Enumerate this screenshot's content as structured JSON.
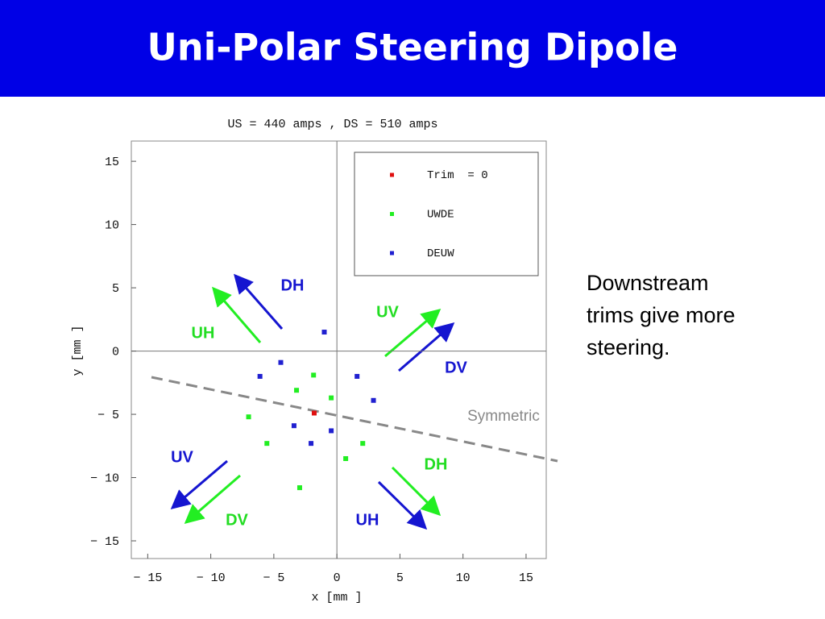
{
  "header": {
    "title": "Uni-Polar Steering Dipole"
  },
  "chart_data": {
    "type": "scatter",
    "title": "US  = 440  amps , DS  = 510  amps",
    "x_label": "x  [mm ]",
    "y_label": "y  [mm ]",
    "xlim": [
      -16.3,
      16.6
    ],
    "ylim": [
      -16.4,
      16.6
    ],
    "xticks": [
      {
        "value": -15,
        "label": "− 15"
      },
      {
        "value": -10,
        "label": "− 10"
      },
      {
        "value": -5,
        "label": "− 5"
      },
      0,
      5,
      10,
      15
    ],
    "yticks": [
      {
        "value": -15,
        "label": "− 15"
      },
      {
        "value": -10,
        "label": "− 10"
      },
      {
        "value": -5,
        "label": "− 5"
      },
      0,
      5,
      10,
      15
    ],
    "legend": "upper right",
    "series": [
      {
        "name": "Trim  = 0",
        "color": "#e01010",
        "x": [
          -1.8
        ],
        "y": [
          -4.9
        ]
      },
      {
        "name": "UWDE",
        "color": "#22ee22",
        "x": [
          -1.85,
          -3.2,
          -0.45,
          -7.0,
          -5.55,
          2.05,
          0.7,
          -2.95
        ],
        "y": [
          -1.9,
          -3.1,
          -3.7,
          -5.2,
          -7.3,
          -7.3,
          -8.5,
          -10.8
        ]
      },
      {
        "name": "DEUW",
        "color": "#2020d0",
        "x": [
          -1.0,
          -4.45,
          -6.1,
          1.6,
          2.9,
          -3.4,
          -0.45,
          -2.05
        ],
        "y": [
          1.5,
          -0.9,
          -2.0,
          -2.0,
          -3.9,
          -5.9,
          -6.3,
          -7.3
        ]
      }
    ],
    "annotations": [
      {
        "text": "DH",
        "color": "#1515d0"
      },
      {
        "text": "UV",
        "color": "#22dd22"
      },
      {
        "text": "UH",
        "color": "#22dd22"
      },
      {
        "text": "DV",
        "color": "#1515d0"
      },
      {
        "text": "UV",
        "color": "#1515d0"
      },
      {
        "text": "DH",
        "color": "#22dd22"
      },
      {
        "text": "DV",
        "color": "#22dd22"
      },
      {
        "text": "UH",
        "color": "#1515d0"
      },
      {
        "text": "Symmetric",
        "color": "#888888"
      }
    ]
  },
  "side_note": {
    "lines": [
      "Downstream",
      "trims give more",
      "steering."
    ]
  }
}
